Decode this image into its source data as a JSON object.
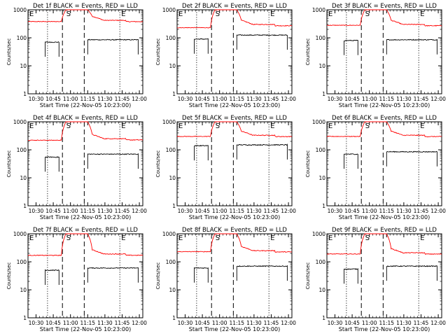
{
  "chart_data": [
    {
      "type": "line",
      "title": "Det 1f BLACK = Events, RED = LLD",
      "xlabel": "Start Time (22-Nov-05 10:23:00)",
      "ylabel": "Counts/sec",
      "ylog": true,
      "ylim": [
        1,
        1000
      ],
      "x_ticks": [
        "10:30",
        "10:45",
        "11:00",
        "11:15",
        "11:30",
        "11:45",
        "12:00"
      ],
      "series": [
        {
          "name": "Events",
          "color": "#000000",
          "level_before": 70,
          "level_after": 85
        },
        {
          "name": "LLD",
          "color": "#ff0000",
          "level_before": 380,
          "level_after": 420
        }
      ]
    },
    {
      "type": "line",
      "title": "Det 2f BLACK = Events, RED = LLD",
      "xlabel": "Start Time (22-Nov-05 10:23:00)",
      "ylabel": "Counts/sec",
      "ylog": true,
      "ylim": [
        1,
        1000
      ],
      "x_ticks": [
        "10:30",
        "10:45",
        "11:00",
        "11:15",
        "11:30",
        "11:45",
        "12:00"
      ],
      "series": [
        {
          "name": "Events",
          "color": "#000000",
          "level_before": 90,
          "level_after": 125
        },
        {
          "name": "LLD",
          "color": "#ff0000",
          "level_before": 230,
          "level_after": 300
        }
      ]
    },
    {
      "type": "line",
      "title": "Det 3f BLACK = Events, RED = LLD",
      "xlabel": "Start Time (22-Nov-05 10:23:00)",
      "ylabel": "Counts/sec",
      "ylog": true,
      "ylim": [
        1,
        1000
      ],
      "x_ticks": [
        "10:30",
        "10:45",
        "11:00",
        "11:15",
        "11:30",
        "11:45",
        "12:00"
      ],
      "series": [
        {
          "name": "Events",
          "color": "#000000",
          "level_before": 80,
          "level_after": 85
        },
        {
          "name": "LLD",
          "color": "#ff0000",
          "level_before": 280,
          "level_after": 300
        }
      ]
    },
    {
      "type": "line",
      "title": "Det 4f BLACK = Events, RED = LLD",
      "xlabel": "Start Time (22-Nov-05 10:23:00)",
      "ylabel": "Counts/sec",
      "ylog": true,
      "ylim": [
        1,
        1000
      ],
      "x_ticks": [
        "10:30",
        "10:45",
        "11:00",
        "11:15",
        "11:30",
        "11:45",
        "12:00"
      ],
      "series": [
        {
          "name": "Events",
          "color": "#000000",
          "level_before": 55,
          "level_after": 70
        },
        {
          "name": "LLD",
          "color": "#ff0000",
          "level_before": 220,
          "level_after": 250
        }
      ]
    },
    {
      "type": "line",
      "title": "Det 5f BLACK = Events, RED = LLD",
      "xlabel": "Start Time (22-Nov-05 10:23:00)",
      "ylabel": "Counts/sec",
      "ylog": true,
      "ylim": [
        1,
        1000
      ],
      "x_ticks": [
        "10:30",
        "10:45",
        "11:00",
        "11:15",
        "11:30",
        "11:45",
        "12:00"
      ],
      "series": [
        {
          "name": "Events",
          "color": "#000000",
          "level_before": 140,
          "level_after": 150
        },
        {
          "name": "LLD",
          "color": "#ff0000",
          "level_before": 300,
          "level_after": 330
        }
      ]
    },
    {
      "type": "line",
      "title": "Det 6f BLACK = Events, RED = LLD",
      "xlabel": "Start Time (22-Nov-05 10:23:00)",
      "ylabel": "Counts/sec",
      "ylog": true,
      "ylim": [
        1,
        1000
      ],
      "x_ticks": [
        "10:30",
        "10:45",
        "11:00",
        "11:15",
        "11:30",
        "11:45",
        "12:00"
      ],
      "series": [
        {
          "name": "Events",
          "color": "#000000",
          "level_before": 70,
          "level_after": 85
        },
        {
          "name": "LLD",
          "color": "#ff0000",
          "level_before": 300,
          "level_after": 330
        }
      ]
    },
    {
      "type": "line",
      "title": "Det 7f BLACK = Events, RED = LLD",
      "xlabel": "Start Time (22-Nov-05 10:23:00)",
      "ylabel": "Counts/sec",
      "ylog": true,
      "ylim": [
        1,
        1000
      ],
      "x_ticks": [
        "10:30",
        "10:45",
        "11:00",
        "11:15",
        "11:30",
        "11:45",
        "12:00"
      ],
      "series": [
        {
          "name": "Events",
          "color": "#000000",
          "level_before": 50,
          "level_after": 60
        },
        {
          "name": "LLD",
          "color": "#ff0000",
          "level_before": 170,
          "level_after": 190
        }
      ]
    },
    {
      "type": "line",
      "title": "Det 8f BLACK = Events, RED = LLD",
      "xlabel": "Start Time (22-Nov-05 10:23:00)",
      "ylabel": "Counts/sec",
      "ylog": true,
      "ylim": [
        1,
        1000
      ],
      "x_ticks": [
        "10:30",
        "10:45",
        "11:00",
        "11:15",
        "11:30",
        "11:45",
        "12:00"
      ],
      "series": [
        {
          "name": "Events",
          "color": "#000000",
          "level_before": 60,
          "level_after": 70
        },
        {
          "name": "LLD",
          "color": "#ff0000",
          "level_before": 230,
          "level_after": 250
        }
      ]
    },
    {
      "type": "line",
      "title": "Det 9f BLACK = Events, RED = LLD",
      "xlabel": "Start Time (22-Nov-05 10:23:00)",
      "ylabel": "Counts/sec",
      "ylog": true,
      "ylim": [
        1,
        1000
      ],
      "x_ticks": [
        "10:30",
        "10:45",
        "11:00",
        "11:15",
        "11:30",
        "11:45",
        "12:00"
      ],
      "series": [
        {
          "name": "Events",
          "color": "#000000",
          "level_before": 55,
          "level_after": 70
        },
        {
          "name": "LLD",
          "color": "#ff0000",
          "level_before": 190,
          "level_after": 210
        }
      ]
    }
  ],
  "shared": {
    "y_ticks": [
      "1",
      "10",
      "100",
      "1000"
    ],
    "eclipse_end_label": "E",
    "saa_label": "S",
    "eclipse_start_label": "E",
    "colors": {
      "events": "#000000",
      "lld": "#ff0000",
      "background": "#ffffff"
    }
  }
}
